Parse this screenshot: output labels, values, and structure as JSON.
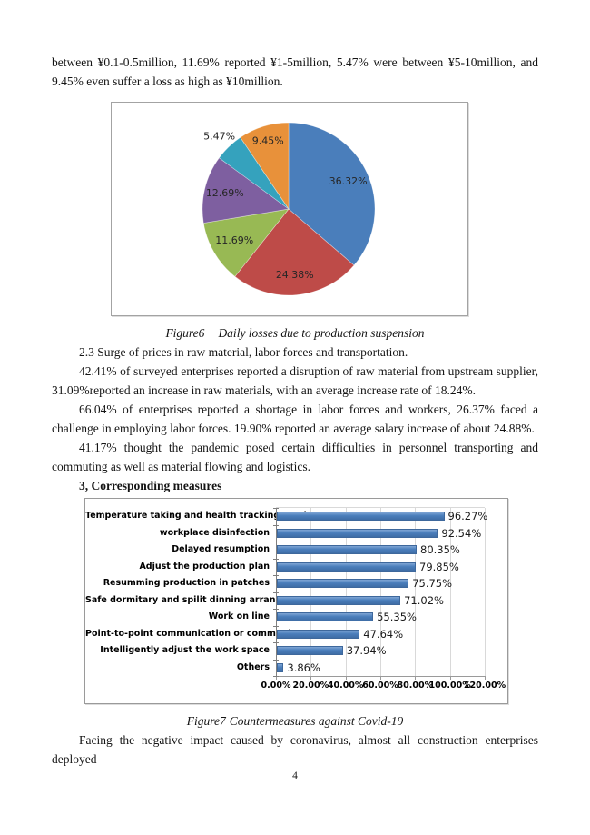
{
  "document": {
    "intro_paragraph": "between ¥0.1-0.5million, 11.69% reported ¥1-5million, 5.47% were between ¥5-10million, and 9.45% even suffer a loss as high as ¥10million.",
    "section_2_3": "2.3 Surge of prices in raw material, labor forces and transportation.",
    "para_raw_material": "42.41% of surveyed enterprises reported a disruption of raw material from upstream supplier, 31.09%reported an increase in raw materials, with an average increase rate of 18.24%.",
    "para_labor": "66.04% of enterprises reported a shortage in labor forces and workers, 26.37% faced a challenge in employing labor forces. 19.90% reported an average salary increase of about 24.88%.",
    "para_transport": "41.17% thought the pandemic posed certain difficulties in personnel transporting and commuting as well as material flowing and logistics.",
    "heading_3": "3, Corresponding measures",
    "closing_paragraph": "Facing the negative impact caused by coronavirus, almost all construction enterprises deployed",
    "page_number": "4"
  },
  "figure6": {
    "caption_label": "Figure6",
    "caption_text": "Daily losses due to production suspension"
  },
  "figure7": {
    "caption_label": "Figure7",
    "caption_text": "Countermeasures against Covid-19"
  },
  "chart_data": [
    {
      "type": "pie",
      "title": "",
      "labels": [
        "36.32%",
        "24.38%",
        "11.69%",
        "12.69%",
        "5.47%",
        "9.45%"
      ],
      "values": [
        36.32,
        24.38,
        11.69,
        12.69,
        5.47,
        9.45
      ],
      "colors": [
        "#4a7ebb",
        "#be4b48",
        "#98b954",
        "#7e5fa0",
        "#35a2bd",
        "#e8913a"
      ],
      "label_color": "#262626",
      "start_angle_deg": 0,
      "direction": "clockwise",
      "legend": "none",
      "label_r": [
        0.76,
        0.77,
        0.73,
        0.76,
        1.16,
        0.82
      ]
    },
    {
      "type": "bar",
      "orientation": "horizontal",
      "title": "",
      "categories": [
        "Temperature taking and health tracking service",
        "workplace disinfection",
        "Delayed resumption",
        "Adjust the production plan",
        "Resumming production in patches",
        "Safe dormitary and spilit dinning arrangement",
        "Work on line",
        "Point-to-point communication or communicate on..",
        "Intelligently adjust the work space",
        "Others"
      ],
      "values": [
        96.27,
        92.54,
        80.35,
        79.85,
        75.75,
        71.02,
        55.35,
        47.64,
        37.94,
        3.86
      ],
      "value_labels": [
        "96.27%",
        "92.54%",
        "80.35%",
        "79.85%",
        "75.75%",
        "71.02%",
        "55.35%",
        "47.64%",
        "37.94%",
        "3.86%"
      ],
      "xlim": [
        0,
        120
      ],
      "gridline_step": 20,
      "x_ticks": [
        "0.00%",
        "20.00%",
        "40.00%",
        "60.00%",
        "80.00%",
        "100.00%",
        "120.00%"
      ],
      "bar_color": "#4a7ebb",
      "grid": true,
      "legend": "none"
    }
  ]
}
